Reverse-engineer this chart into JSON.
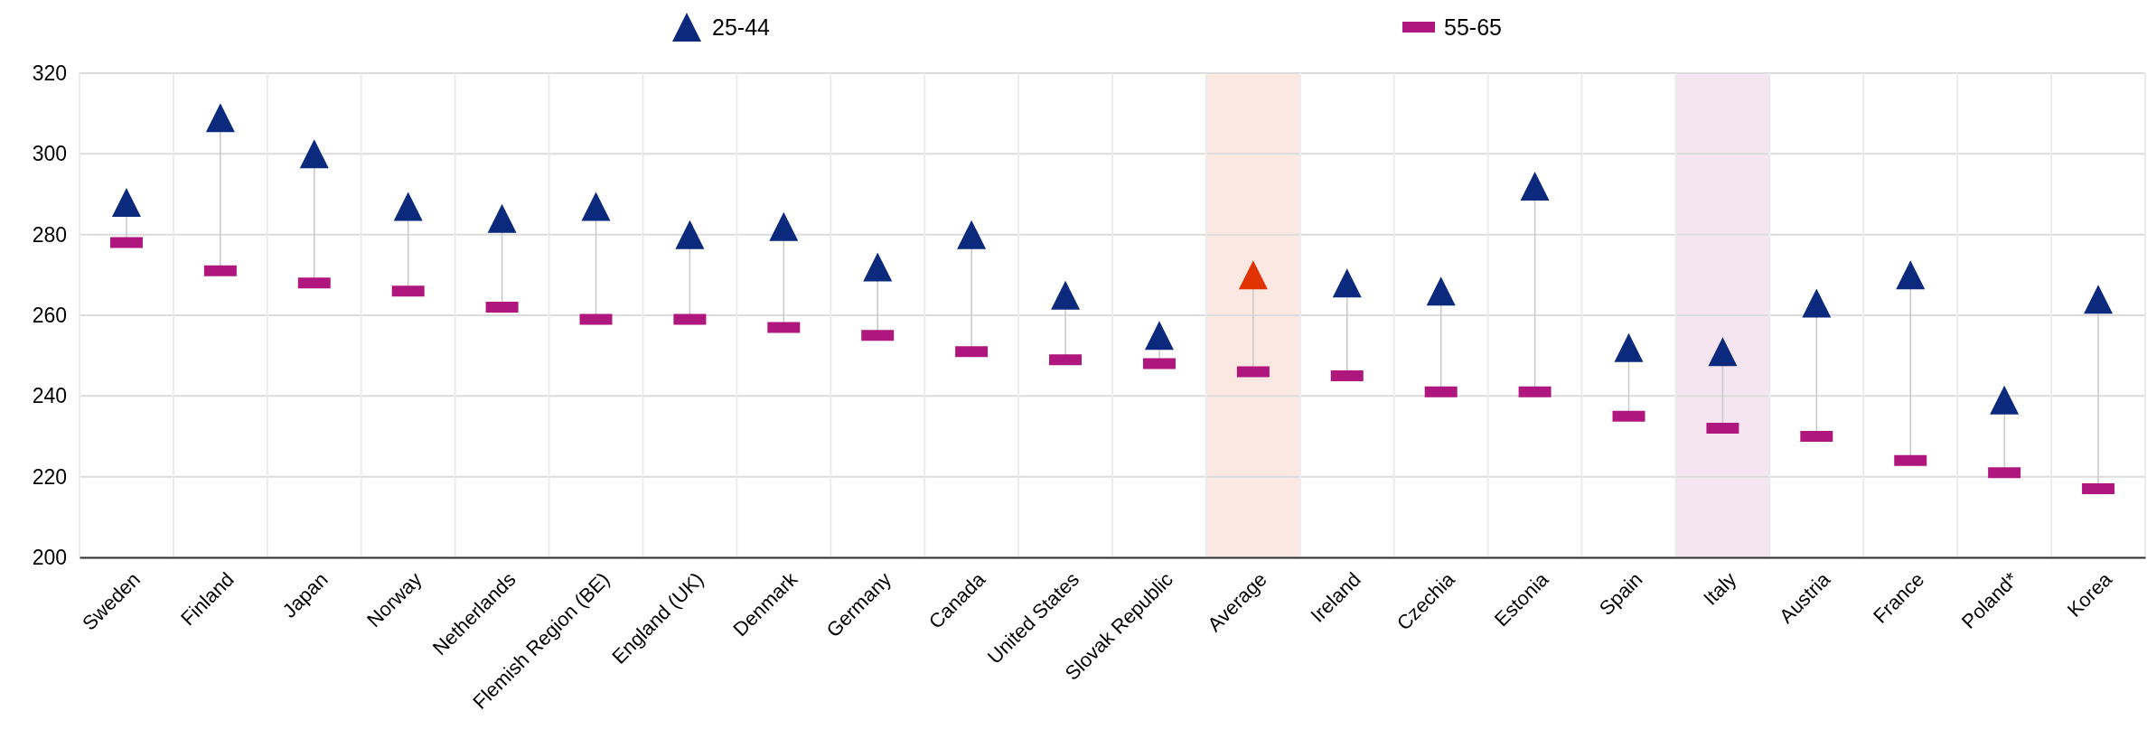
{
  "chart_data": {
    "type": "scatter",
    "categories": [
      "Sweden",
      "Finland",
      "Japan",
      "Norway",
      "Netherlands",
      "Flemish Region (BE)",
      "England (UK)",
      "Denmark",
      "Germany",
      "Canada",
      "United States",
      "Slovak Republic",
      "Average",
      "Ireland",
      "Czechia",
      "Estonia",
      "Spain",
      "Italy",
      "Austria",
      "France",
      "Poland*",
      "Korea"
    ],
    "series": [
      {
        "name": "25-44",
        "color": "#0b2a7d",
        "marker": "triangle",
        "colors": [
          "#0b2a7d",
          "#0b2a7d",
          "#0b2a7d",
          "#0b2a7d",
          "#0b2a7d",
          "#0b2a7d",
          "#0b2a7d",
          "#0b2a7d",
          "#0b2a7d",
          "#0b2a7d",
          "#0b2a7d",
          "#0b2a7d",
          "#e03300",
          "#0b2a7d",
          "#0b2a7d",
          "#0b2a7d",
          "#0b2a7d",
          "#0b2a7d",
          "#0b2a7d",
          "#0b2a7d",
          "#0b2a7d",
          "#0b2a7d"
        ],
        "values": [
          288,
          309,
          300,
          287,
          284,
          287,
          280,
          282,
          272,
          280,
          265,
          255,
          270,
          268,
          266,
          292,
          252,
          251,
          263,
          270,
          239,
          264
        ]
      },
      {
        "name": "55-65",
        "color": "#b0177e",
        "marker": "square",
        "values": [
          278,
          271,
          268,
          266,
          262,
          259,
          259,
          257,
          255,
          251,
          249,
          248,
          246,
          245,
          241,
          241,
          235,
          232,
          230,
          224,
          221,
          217
        ]
      }
    ],
    "ylim": [
      200,
      320
    ],
    "yticks": [
      200,
      220,
      240,
      260,
      280,
      300,
      320
    ],
    "grid": true,
    "legend": "top",
    "bands": [
      {
        "axis": "x",
        "from": "Average",
        "to": "Average",
        "color": "#fbe8e2"
      },
      {
        "axis": "x",
        "from": "Italy",
        "to": "Italy",
        "color": "#f5e5f0"
      }
    ]
  }
}
